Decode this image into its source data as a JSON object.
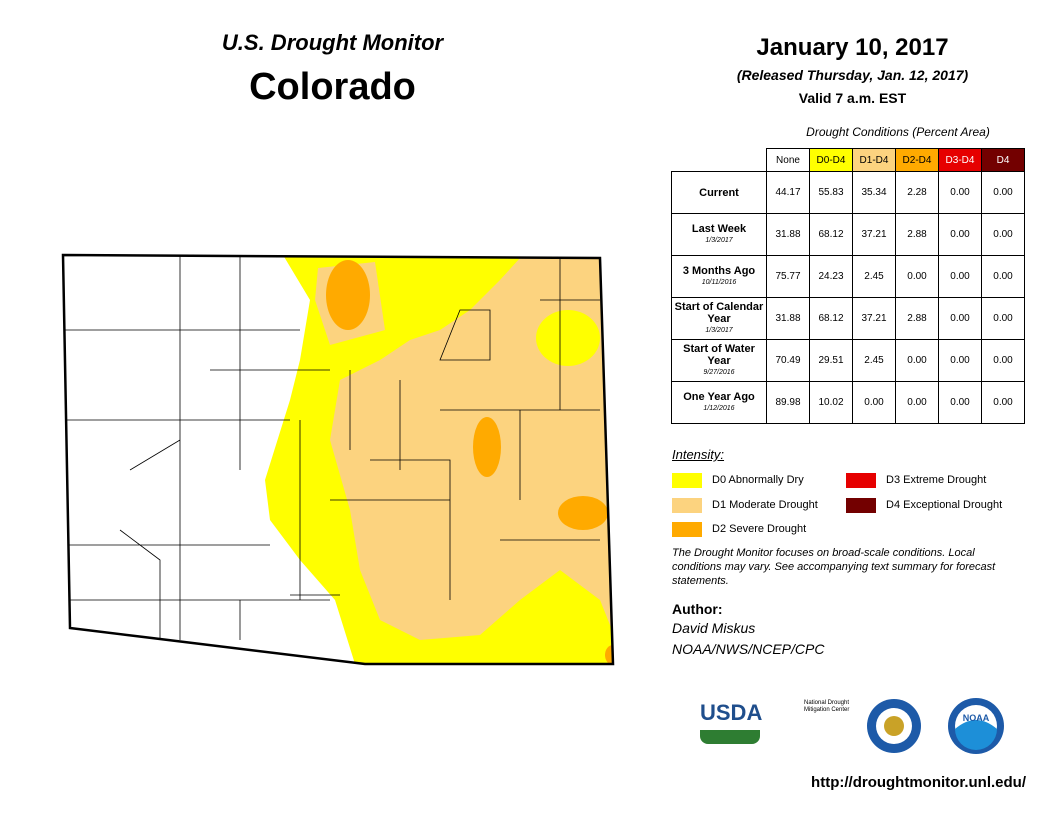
{
  "header": {
    "title": "U.S. Drought Monitor",
    "state": "Colorado",
    "date": "January 10, 2017",
    "released": "(Released Thursday, Jan. 12, 2017)",
    "valid": "Valid 7 a.m. EST"
  },
  "table": {
    "caption": "Drought Conditions (Percent Area)",
    "columns": [
      {
        "label": "None",
        "color": "#ffffff",
        "text": "#000000"
      },
      {
        "label": "D0-D4",
        "color": "#ffff00",
        "text": "#000000"
      },
      {
        "label": "D1-D4",
        "color": "#fcd37f",
        "text": "#000000"
      },
      {
        "label": "D2-D4",
        "color": "#ffaa00",
        "text": "#000000"
      },
      {
        "label": "D3-D4",
        "color": "#e60000",
        "text": "#ffffff"
      },
      {
        "label": "D4",
        "color": "#730000",
        "text": "#ffffff"
      }
    ],
    "rows": [
      {
        "label": "Current",
        "values": [
          "44.17",
          "55.83",
          "35.34",
          "2.28",
          "0.00",
          "0.00"
        ]
      },
      {
        "label": "Last Week",
        "date": "1/3/2017",
        "values": [
          "31.88",
          "68.12",
          "37.21",
          "2.88",
          "0.00",
          "0.00"
        ]
      },
      {
        "label": "3 Months Ago",
        "date": "10/11/2016",
        "values": [
          "75.77",
          "24.23",
          "2.45",
          "0.00",
          "0.00",
          "0.00"
        ]
      },
      {
        "label": "Start of Calendar Year",
        "date": "1/3/2017",
        "values": [
          "31.88",
          "68.12",
          "37.21",
          "2.88",
          "0.00",
          "0.00"
        ]
      },
      {
        "label": "Start of Water Year",
        "date": "9/27/2016",
        "values": [
          "70.49",
          "29.51",
          "2.45",
          "0.00",
          "0.00",
          "0.00"
        ]
      },
      {
        "label": "One Year Ago",
        "date": "1/12/2016",
        "values": [
          "89.98",
          "10.02",
          "0.00",
          "0.00",
          "0.00",
          "0.00"
        ]
      }
    ]
  },
  "legend": {
    "title": "Intensity:",
    "items": [
      {
        "label": "D0 Abnormally Dry",
        "color": "#ffff00"
      },
      {
        "label": "D1 Moderate Drought",
        "color": "#fcd37f"
      },
      {
        "label": "D2 Severe Drought",
        "color": "#ffaa00"
      },
      {
        "label": "D3 Extreme Drought",
        "color": "#e60000"
      },
      {
        "label": "D4 Exceptional Drought",
        "color": "#730000"
      }
    ]
  },
  "note": "The Drought Monitor focuses on broad-scale conditions. Local conditions may vary. See accompanying text summary for forecast statements.",
  "author": {
    "heading": "Author:",
    "name": "David Miskus",
    "org": "NOAA/NWS/NCEP/CPC"
  },
  "logos": {
    "usda": "USDA",
    "ndmc": "National Drought Mitigation Center",
    "noaa": "NOAA"
  },
  "url": "http://droughtmonitor.unl.edu/"
}
